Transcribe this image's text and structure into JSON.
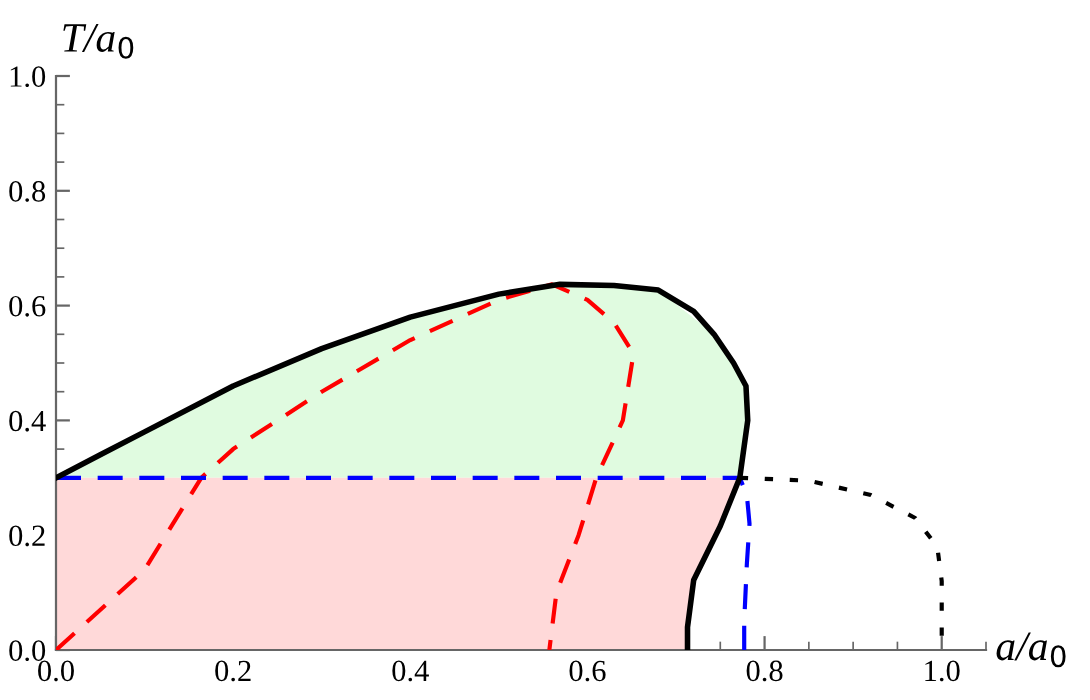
{
  "chart_data": {
    "type": "line",
    "xlabel": "a/a$_{0}$",
    "ylabel": "T/a$_{0}$",
    "xlim": [
      0,
      1.05
    ],
    "ylim": [
      0,
      1.0
    ],
    "xticks": [
      {
        "value": 0,
        "label": "0.0"
      },
      0.2,
      0.4,
      0.6,
      0.8,
      {
        "value": 1.0,
        "label": "1.0"
      }
    ],
    "yticks": [
      {
        "value": 0,
        "label": "0.0"
      },
      0.2,
      0.4,
      0.6,
      0.8,
      {
        "value": 1.0,
        "label": "1.0"
      }
    ],
    "marker": "none",
    "series": [
      {
        "type": "area",
        "color": "#e0fbe0",
        "x": [
          0,
          0.05,
          0.1,
          0.2,
          0.3,
          0.4,
          0.5,
          0.569,
          0.68,
          0.743,
          0.779,
          0.781,
          0.772
        ],
        "values": [
          0.3,
          0.34,
          0.38,
          0.46,
          0.525,
          0.58,
          0.62,
          0.637,
          0.627,
          0.55,
          0.46,
          0.4,
          0.3
        ]
      },
      {
        "type": "area",
        "color": "#ffd9d9",
        "x": [
          0,
          0,
          0.772,
          0.75,
          0.72,
          0.713,
          0.713
        ],
        "values": [
          0,
          0.3,
          0.3,
          0.216,
          0.122,
          0.04,
          0
        ]
      },
      {
        "type": "line",
        "color": "#ff0000",
        "line_style": "dashed",
        "x": [
          0,
          0.1,
          0.164,
          0.2,
          0.3,
          0.4,
          0.5,
          0.56,
          0.6,
          0.63,
          0.652,
          0.64,
          0.61,
          0.59,
          0.565,
          0.557
        ],
        "values": [
          0,
          0.14,
          0.3,
          0.35,
          0.45,
          0.54,
          0.61,
          0.637,
          0.61,
          0.57,
          0.516,
          0.4,
          0.3,
          0.2,
          0.1,
          0
        ]
      },
      {
        "type": "line",
        "color": "#0000ff",
        "line_style": "dashed",
        "x": [
          0,
          0.772,
          0.78,
          0.783,
          0.78,
          0.777,
          0.777
        ],
        "values": [
          0.3,
          0.3,
          0.27,
          0.22,
          0.15,
          0.05,
          0
        ]
      },
      {
        "type": "line",
        "color": "#000000",
        "line_style": "dotted",
        "x": [
          0.772,
          0.85,
          0.92,
          0.97,
          0.995,
          1.0,
          1.0
        ],
        "values": [
          0.3,
          0.295,
          0.27,
          0.23,
          0.18,
          0.12,
          0
        ]
      },
      {
        "type": "line",
        "color": "#000000",
        "line_style": "solid",
        "x": [
          0,
          0.05,
          0.1,
          0.2,
          0.3,
          0.4,
          0.5,
          0.569,
          0.63,
          0.68,
          0.72,
          0.743,
          0.765,
          0.779,
          0.781,
          0.772,
          0.75,
          0.72,
          0.713,
          0.713
        ],
        "values": [
          0.3,
          0.34,
          0.38,
          0.46,
          0.525,
          0.58,
          0.62,
          0.637,
          0.635,
          0.627,
          0.59,
          0.55,
          0.5,
          0.46,
          0.4,
          0.3,
          0.216,
          0.122,
          0.04,
          0
        ]
      }
    ]
  }
}
